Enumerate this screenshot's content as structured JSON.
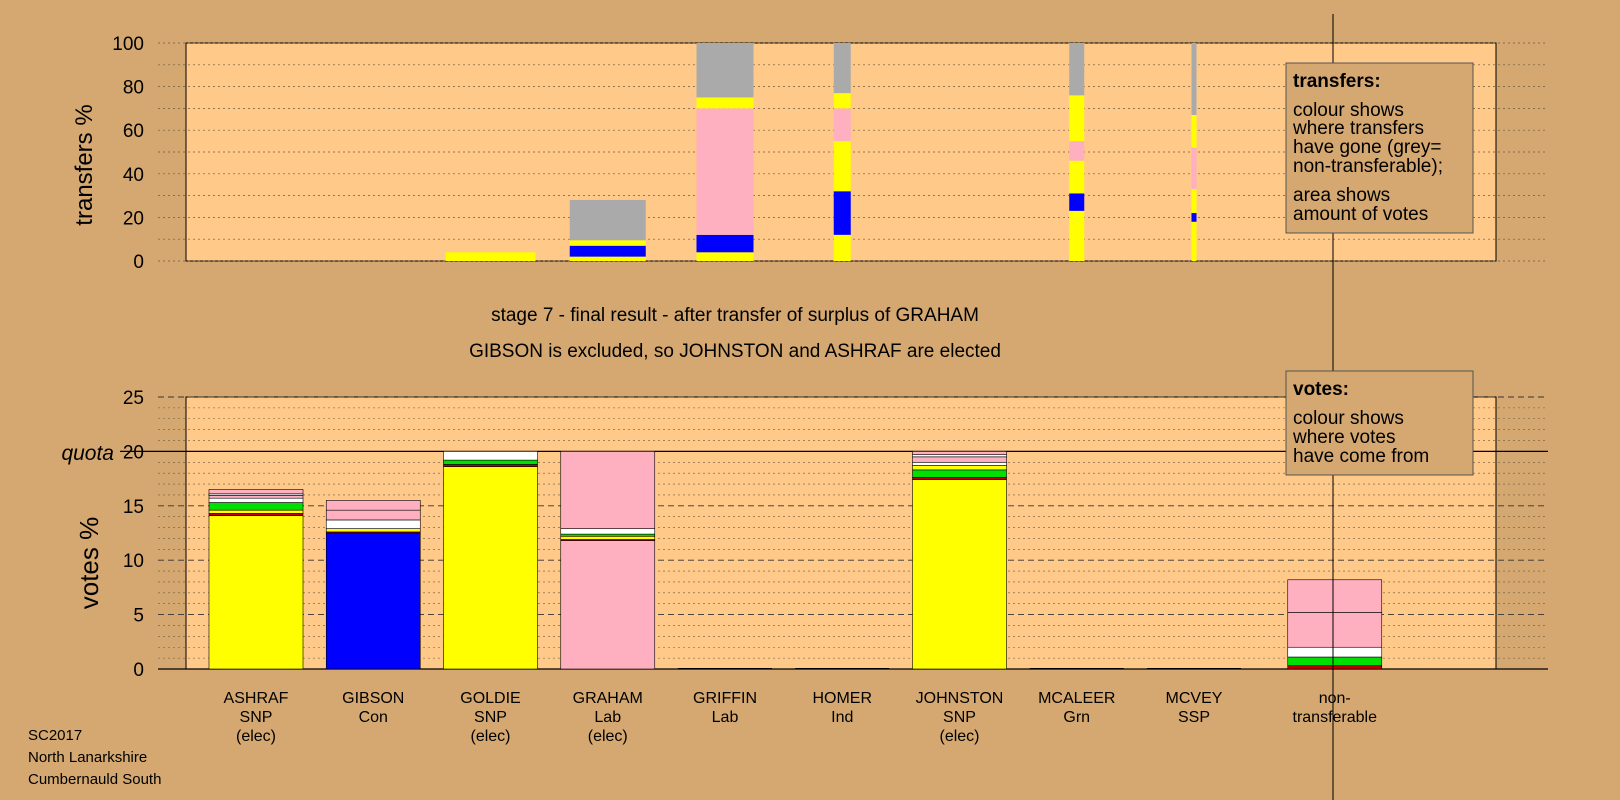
{
  "colors": {
    "page_bg": "#D4A870",
    "panel_bg": "#FFC98A",
    "legend_bg": "#D4A870",
    "snp": "#FFFF00",
    "con": "#0000FF",
    "lab": "#FFB0C0",
    "grn": "#00E000",
    "ind": "#FFFFFF",
    "ssp": "#C00000",
    "nontransferable": "#AAAAAA"
  },
  "stage": {
    "line1": "stage 7 - final result - after transfer of surplus of GRAHAM",
    "line2": "GIBSON is excluded, so JOHNSTON and ASHRAF are elected"
  },
  "footer": {
    "line1": "SC2017",
    "line2": "North Lanarkshire",
    "line3": "Cumbernauld South"
  },
  "legends": {
    "transfers": {
      "title": "transfers:",
      "lines": [
        "colour shows",
        "where transfers",
        "have gone (grey=",
        "non-transferable);"
      ],
      "lines2": [
        "area shows",
        "amount of votes"
      ]
    },
    "votes": {
      "title": "votes:",
      "lines": [
        "colour shows",
        "where votes",
        "have come from"
      ]
    }
  },
  "chart_data": [
    {
      "type": "bar",
      "ylabel": "transfers %",
      "ylim": [
        0,
        100
      ],
      "yticks": [
        0,
        20,
        40,
        60,
        80,
        100
      ],
      "stacks": [
        {
          "segments": []
        },
        {
          "segments": []
        },
        {
          "segments": [
            {
              "party": "snp",
              "from": 0,
              "to": 4
            }
          ]
        },
        {
          "segments": [
            {
              "party": "snp",
              "from": 0,
              "to": 2
            },
            {
              "party": "con",
              "from": 2,
              "to": 7
            },
            {
              "party": "snp",
              "from": 7,
              "to": 9.5
            },
            {
              "party": "nontransferable",
              "from": 9.5,
              "to": 28
            }
          ]
        },
        {
          "segments": [
            {
              "party": "snp",
              "from": 0,
              "to": 4
            },
            {
              "party": "con",
              "from": 4,
              "to": 12
            },
            {
              "party": "lab",
              "from": 12,
              "to": 70
            },
            {
              "party": "snp",
              "from": 70,
              "to": 75
            },
            {
              "party": "nontransferable",
              "from": 75,
              "to": 100
            }
          ]
        },
        {
          "segments": [
            {
              "party": "snp",
              "from": 0,
              "to": 12
            },
            {
              "party": "con",
              "from": 12,
              "to": 32
            },
            {
              "party": "snp",
              "from": 32,
              "to": 55
            },
            {
              "party": "lab",
              "from": 55,
              "to": 70
            },
            {
              "party": "snp",
              "from": 70,
              "to": 77
            },
            {
              "party": "nontransferable",
              "from": 77,
              "to": 100
            }
          ]
        },
        {
          "segments": []
        },
        {
          "segments": [
            {
              "party": "snp",
              "from": 0,
              "to": 23
            },
            {
              "party": "con",
              "from": 23,
              "to": 31
            },
            {
              "party": "snp",
              "from": 31,
              "to": 46
            },
            {
              "party": "lab",
              "from": 46,
              "to": 55
            },
            {
              "party": "snp",
              "from": 55,
              "to": 76
            },
            {
              "party": "nontransferable",
              "from": 76,
              "to": 100
            }
          ]
        },
        {
          "segments": [
            {
              "party": "snp",
              "from": 0,
              "to": 18
            },
            {
              "party": "con",
              "from": 18,
              "to": 22
            },
            {
              "party": "snp",
              "from": 22,
              "to": 33
            },
            {
              "party": "lab",
              "from": 33,
              "to": 52
            },
            {
              "party": "snp",
              "from": 52,
              "to": 67
            },
            {
              "party": "nontransferable",
              "from": 67,
              "to": 100
            }
          ]
        },
        {
          "segments": []
        }
      ]
    },
    {
      "type": "bar",
      "ylabel": "votes %",
      "ylim": [
        0,
        25
      ],
      "yticks": [
        0,
        5,
        10,
        15,
        20,
        25
      ],
      "quota": 20,
      "quota_label": "quota",
      "candidates": [
        {
          "name": "ASHRAF",
          "party": "SNP",
          "status": "(elec)"
        },
        {
          "name": "GIBSON",
          "party": "Con",
          "status": ""
        },
        {
          "name": "GOLDIE",
          "party": "SNP",
          "status": "(elec)"
        },
        {
          "name": "GRAHAM",
          "party": "Lab",
          "status": "(elec)"
        },
        {
          "name": "GRIFFIN",
          "party": "Lab",
          "status": ""
        },
        {
          "name": "HOMER",
          "party": "Ind",
          "status": ""
        },
        {
          "name": "JOHNSTON",
          "party": "SNP",
          "status": "(elec)"
        },
        {
          "name": "MCALEER",
          "party": "Grn",
          "status": ""
        },
        {
          "name": "MCVEY",
          "party": "SSP",
          "status": ""
        },
        {
          "name": "non-",
          "party": "transferable",
          "status": ""
        }
      ],
      "stacks": [
        {
          "segments": [
            {
              "party": "snp",
              "from": 0,
              "to": 14.1
            },
            {
              "party": "ssp",
              "from": 14.1,
              "to": 14.3
            },
            {
              "party": "snp",
              "from": 14.3,
              "to": 14.6
            },
            {
              "party": "grn",
              "from": 14.6,
              "to": 15.3
            },
            {
              "party": "ind",
              "from": 15.3,
              "to": 15.7
            },
            {
              "party": "lab",
              "from": 15.7,
              "to": 15.95
            },
            {
              "party": "ind",
              "from": 15.95,
              "to": 16.1
            },
            {
              "party": "lab",
              "from": 16.1,
              "to": 16.5
            }
          ]
        },
        {
          "segments": [
            {
              "party": "con",
              "from": 0,
              "to": 12.5
            },
            {
              "party": "ssp",
              "from": 12.5,
              "to": 12.6
            },
            {
              "party": "snp",
              "from": 12.6,
              "to": 12.9
            },
            {
              "party": "ind",
              "from": 12.9,
              "to": 13.7
            },
            {
              "party": "lab",
              "from": 13.7,
              "to": 14.6
            },
            {
              "party": "lab",
              "from": 14.6,
              "to": 15.5
            }
          ]
        },
        {
          "segments": [
            {
              "party": "snp",
              "from": 0,
              "to": 18.6
            },
            {
              "party": "ssp",
              "from": 18.6,
              "to": 18.8
            },
            {
              "party": "grn",
              "from": 18.8,
              "to": 19.2
            },
            {
              "party": "ind",
              "from": 19.2,
              "to": 20
            }
          ]
        },
        {
          "segments": [
            {
              "party": "lab",
              "from": 0,
              "to": 11.8
            },
            {
              "party": "ssp",
              "from": 11.8,
              "to": 11.9
            },
            {
              "party": "snp",
              "from": 11.9,
              "to": 12.2
            },
            {
              "party": "grn",
              "from": 12.2,
              "to": 12.4
            },
            {
              "party": "ind",
              "from": 12.4,
              "to": 12.9
            },
            {
              "party": "lab",
              "from": 12.9,
              "to": 20
            }
          ]
        },
        {
          "segments": []
        },
        {
          "segments": []
        },
        {
          "segments": [
            {
              "party": "snp",
              "from": 0,
              "to": 17.4
            },
            {
              "party": "ssp",
              "from": 17.4,
              "to": 17.6
            },
            {
              "party": "grn",
              "from": 17.6,
              "to": 18.3
            },
            {
              "party": "snp",
              "from": 18.3,
              "to": 18.7
            },
            {
              "party": "ind",
              "from": 18.7,
              "to": 19.0
            },
            {
              "party": "lab",
              "from": 19.0,
              "to": 19.5
            },
            {
              "party": "ind",
              "from": 19.5,
              "to": 19.7
            },
            {
              "party": "lab",
              "from": 19.7,
              "to": 20
            }
          ]
        },
        {
          "segments": []
        },
        {
          "segments": []
        },
        {
          "segments": [
            {
              "party": "ssp",
              "from": 0,
              "to": 0.3
            },
            {
              "party": "grn",
              "from": 0.3,
              "to": 1.1
            },
            {
              "party": "ind",
              "from": 1.1,
              "to": 2.0
            },
            {
              "party": "lab",
              "from": 2.0,
              "to": 5.2
            },
            {
              "party": "lab",
              "from": 5.2,
              "to": 8.2
            }
          ]
        }
      ]
    }
  ]
}
